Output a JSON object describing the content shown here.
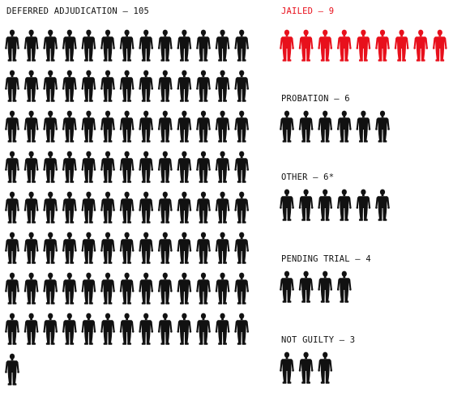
{
  "chart_data": {
    "type": "pictograph",
    "unit": "person",
    "highlight_color": "#e8101c",
    "default_color": "#111111",
    "groups": [
      {
        "key": "deferred",
        "label": "DEFERRED ADJUDICATION — 105",
        "value": 105,
        "highlight": false
      },
      {
        "key": "jailed",
        "label": "JAILED — 9",
        "value": 9,
        "highlight": true
      },
      {
        "key": "probation",
        "label": "PROBATION — 6",
        "value": 6,
        "highlight": false
      },
      {
        "key": "other",
        "label": "OTHER — 6*",
        "value": 6,
        "highlight": false
      },
      {
        "key": "pending",
        "label": "PENDING TRIAL — 4",
        "value": 4,
        "highlight": false
      },
      {
        "key": "not_guilty",
        "label": "NOT GUILTY — 3",
        "value": 3,
        "highlight": false
      }
    ]
  }
}
